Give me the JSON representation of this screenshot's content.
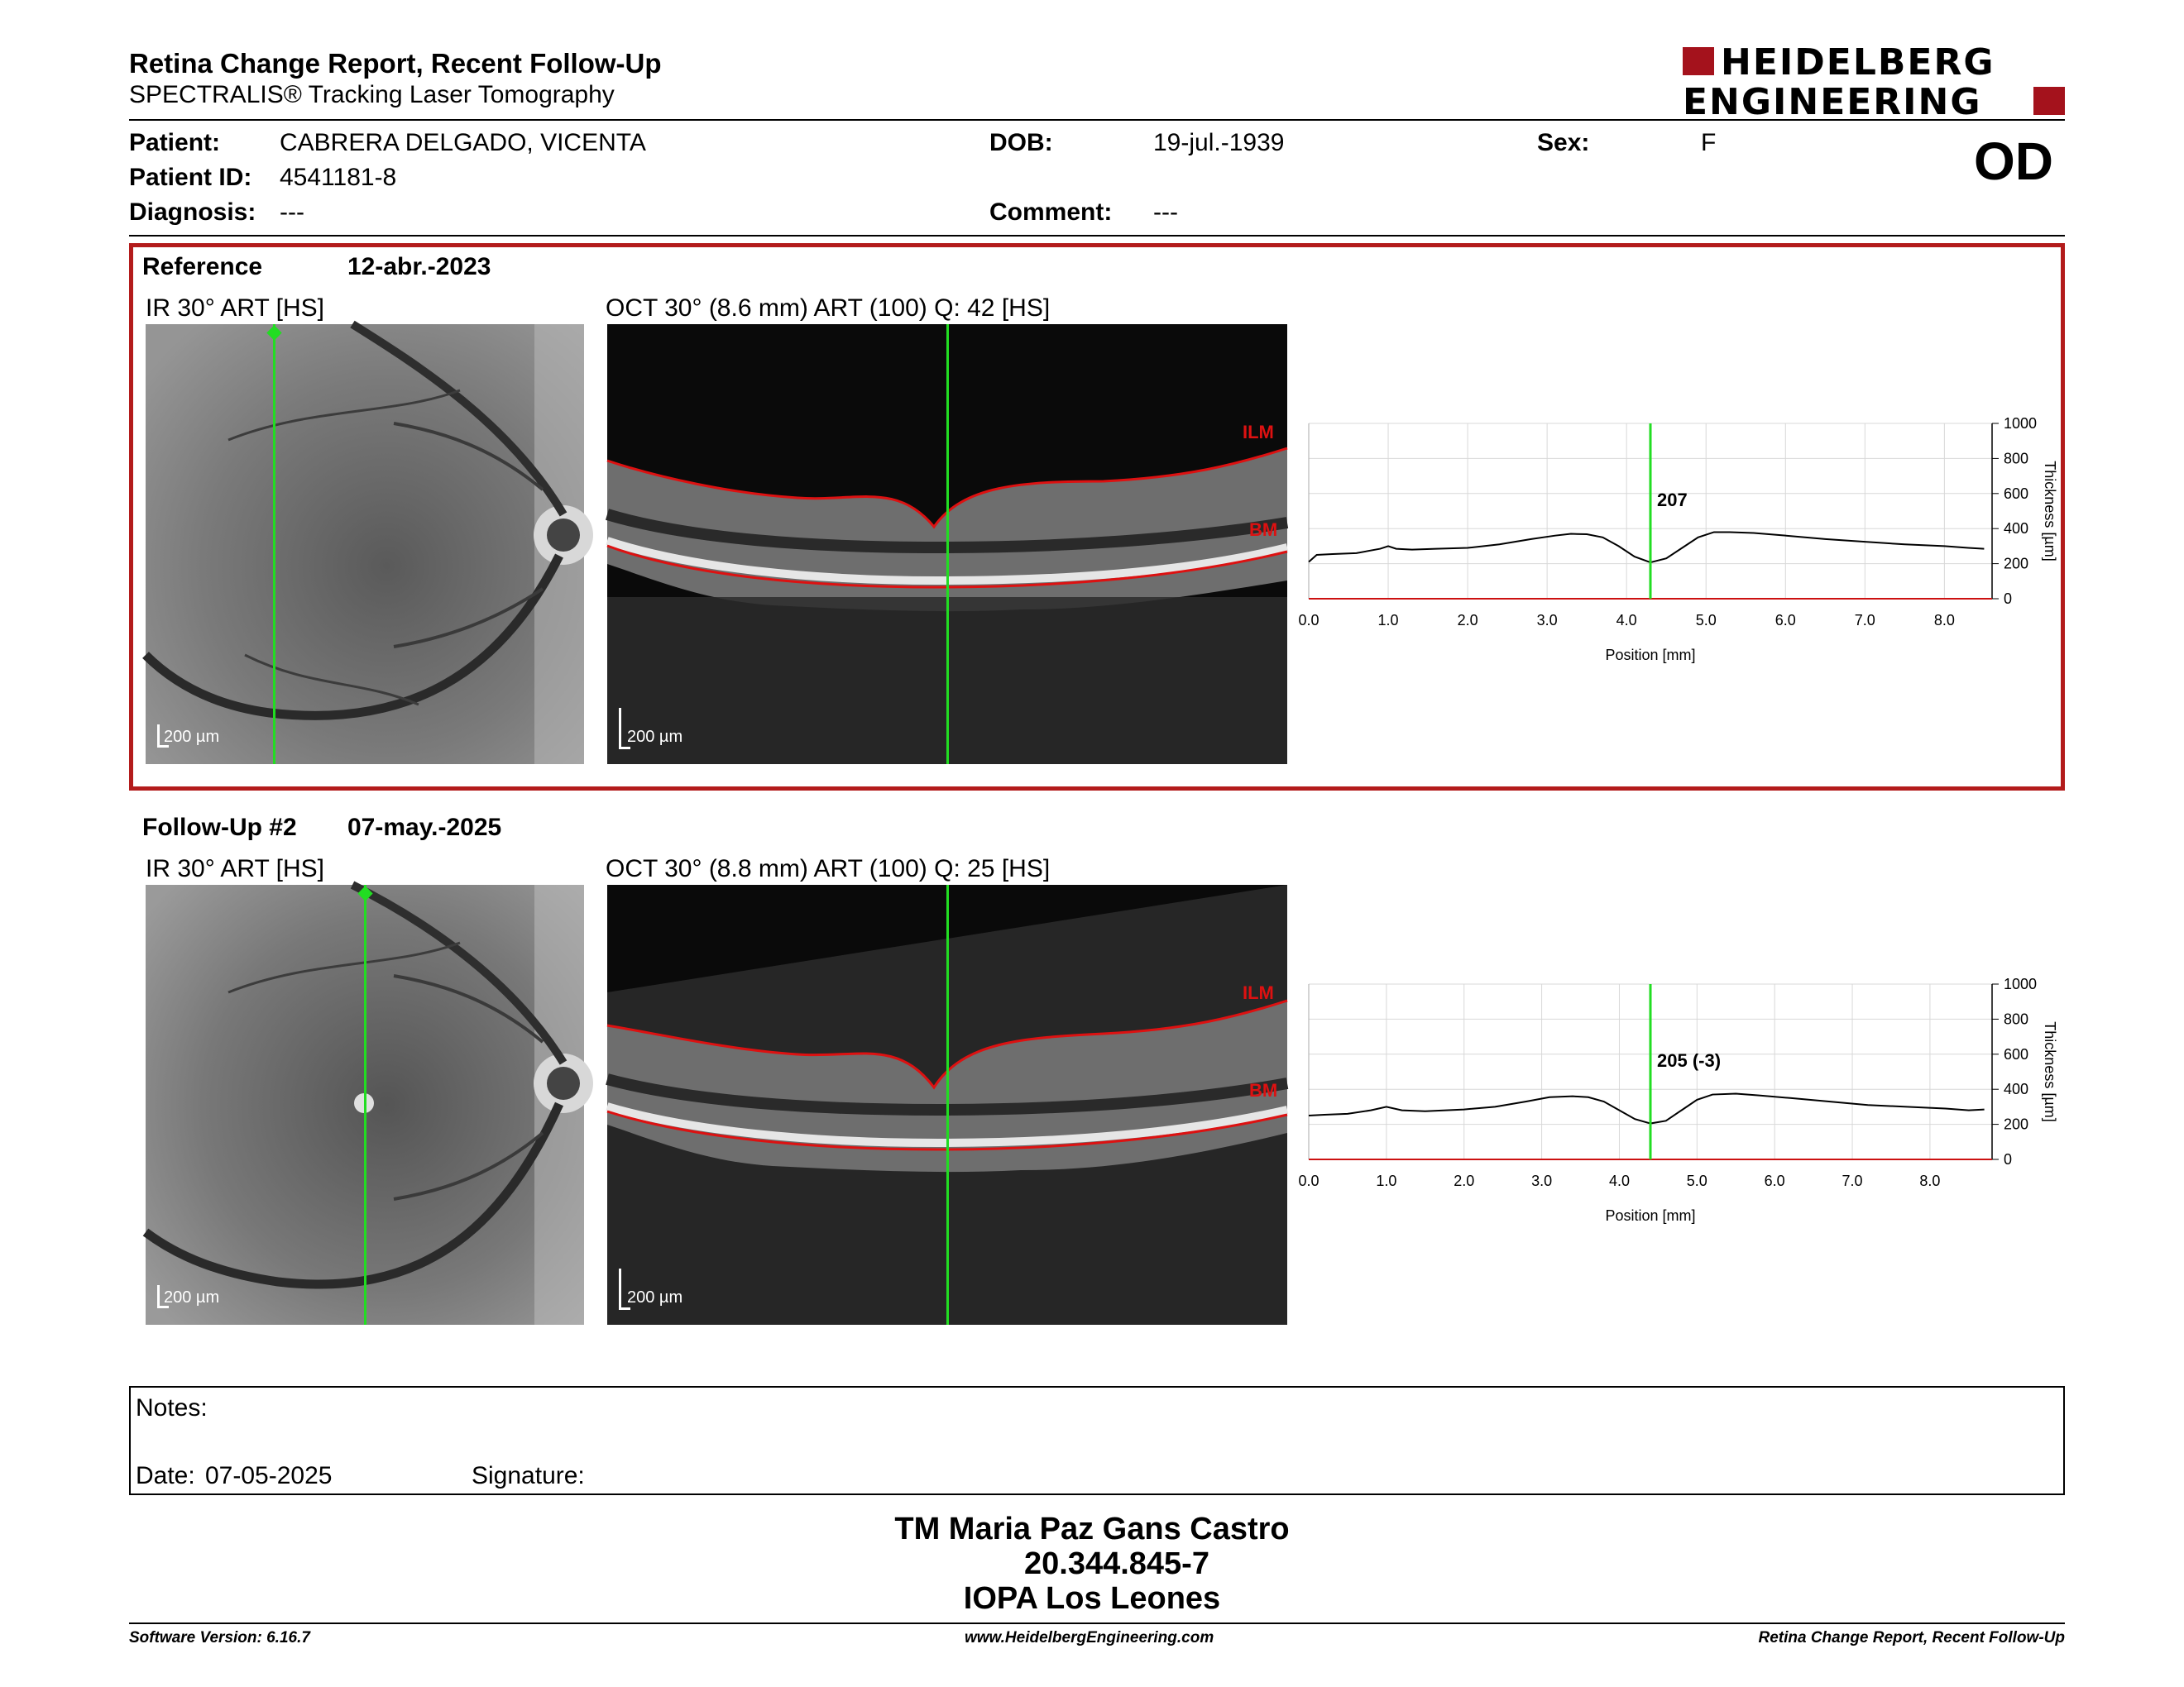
{
  "header": {
    "title": "Retina Change Report, Recent Follow-Up",
    "subtitle": "SPECTRALIS® Tracking Laser Tomography",
    "logo_line1": "HEIDELBERG",
    "logo_line2": "ENGINEERING"
  },
  "patient": {
    "patient_label": "Patient:",
    "patient_value": "CABRERA DELGADO, VICENTA",
    "id_label": "Patient ID:",
    "id_value": "4541181-8",
    "diag_label": "Diagnosis:",
    "diag_value": "---",
    "dob_label": "DOB:",
    "dob_value": "19-jul.-1939",
    "comment_label": "Comment:",
    "comment_value": "---",
    "sex_label": "Sex:",
    "sex_value": "F",
    "eye": "OD"
  },
  "reference": {
    "label": "Reference",
    "date": "12-abr.-2023",
    "ir_label": "IR 30° ART [HS]",
    "oct_label": "OCT 30° (8.6 mm) ART (100) Q: 42 [HS]",
    "scale": "200 µm",
    "ilm": "ILM",
    "bm": "BM"
  },
  "followup": {
    "label": "Follow-Up #2",
    "date": "07-may.-2025",
    "ir_label": "IR 30° ART [HS]",
    "oct_label": "OCT 30° (8.8 mm) ART (100) Q: 25 [HS]",
    "scale": "200 µm",
    "ilm": "ILM",
    "bm": "BM"
  },
  "chart_data": [
    {
      "type": "line",
      "xlabel": "Position [mm]",
      "ylabel": "Thickness [µm]",
      "xlim": [
        0,
        8.6
      ],
      "ylim": [
        0,
        1000
      ],
      "xticks": [
        "0.0",
        "1.0",
        "2.0",
        "3.0",
        "4.0",
        "5.0",
        "6.0",
        "7.0",
        "8.0"
      ],
      "yticks": [
        "0",
        "200",
        "400",
        "600",
        "800",
        "1000"
      ],
      "cursor_x": 4.3,
      "cursor_label": "207",
      "grid": true,
      "x": [
        0.0,
        0.1,
        0.3,
        0.6,
        0.9,
        1.0,
        1.1,
        1.3,
        1.6,
        2.0,
        2.4,
        2.8,
        3.1,
        3.3,
        3.5,
        3.7,
        3.9,
        4.1,
        4.3,
        4.5,
        4.7,
        4.9,
        5.1,
        5.3,
        5.6,
        6.0,
        6.5,
        7.0,
        7.5,
        8.0,
        8.3,
        8.5
      ],
      "y": [
        210,
        250,
        255,
        260,
        285,
        300,
        285,
        280,
        285,
        290,
        310,
        340,
        360,
        370,
        368,
        350,
        300,
        240,
        207,
        230,
        290,
        350,
        380,
        380,
        375,
        360,
        340,
        325,
        310,
        300,
        290,
        285
      ]
    },
    {
      "type": "line",
      "xlabel": "Position [mm]",
      "ylabel": "Thickness [µm]",
      "xlim": [
        0,
        8.8
      ],
      "ylim": [
        0,
        1000
      ],
      "xticks": [
        "0.0",
        "1.0",
        "2.0",
        "3.0",
        "4.0",
        "5.0",
        "6.0",
        "7.0",
        "8.0"
      ],
      "yticks": [
        "0",
        "200",
        "400",
        "600",
        "800",
        "1000"
      ],
      "cursor_x": 4.4,
      "cursor_label": "205 (-3)",
      "grid": true,
      "x": [
        0.0,
        0.2,
        0.5,
        0.8,
        1.0,
        1.2,
        1.5,
        2.0,
        2.4,
        2.8,
        3.1,
        3.4,
        3.6,
        3.8,
        4.0,
        4.2,
        4.4,
        4.6,
        4.8,
        5.0,
        5.2,
        5.5,
        5.8,
        6.2,
        6.7,
        7.2,
        7.7,
        8.2,
        8.5,
        8.7
      ],
      "y": [
        250,
        255,
        260,
        280,
        300,
        280,
        275,
        285,
        300,
        330,
        355,
        360,
        355,
        330,
        280,
        230,
        205,
        220,
        280,
        340,
        370,
        375,
        365,
        350,
        330,
        310,
        300,
        290,
        280,
        285
      ]
    }
  ],
  "notes": {
    "notes_label": "Notes:",
    "date_label": "Date:",
    "date_value": "07-05-2025",
    "signature_label": "Signature:"
  },
  "signature": {
    "line1": "TM Maria Paz Gans Castro",
    "line2": "20.344.845-7",
    "line3": "IOPA Los Leones"
  },
  "footer": {
    "software": "Software Version: 6.16.7",
    "website": "www.HeidelbergEngineering.com",
    "report": "Retina Change Report, Recent Follow-Up"
  },
  "colors": {
    "brand_red": "#a4121c",
    "ref_border": "#b31b1b",
    "cursor_green": "#22dd22",
    "layer_red": "#dd1111"
  }
}
